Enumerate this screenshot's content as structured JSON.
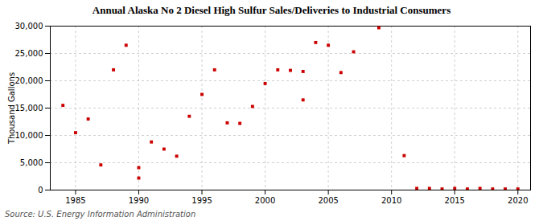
{
  "chart_data": {
    "type": "scatter",
    "title": "Annual Alaska No 2 Diesel High Sulfur Sales/Deliveries to Industrial Consumers",
    "ylabel": "Thousand Gallons",
    "source": "Source: U.S. Energy Information Administration",
    "color": "#cc0000",
    "marker": "square",
    "grid": true,
    "xlim": [
      1983,
      2021
    ],
    "ylim": [
      0,
      30000
    ],
    "xticks": [
      1985,
      1990,
      1995,
      2000,
      2005,
      2010,
      2015,
      2020
    ],
    "yticks": [
      0,
      {
        "value": 5000,
        "label": "5,000"
      },
      {
        "value": 10000,
        "label": "10,000"
      },
      {
        "value": 15000,
        "label": "15,000"
      },
      {
        "value": 20000,
        "label": "20,000"
      },
      {
        "value": 25000,
        "label": "25,000"
      },
      {
        "value": 30000,
        "label": "30,000"
      }
    ],
    "x": [
      1984,
      1985,
      1986,
      1987,
      1988,
      1989,
      1990,
      1990,
      1991,
      1992,
      1993,
      1994,
      1995,
      1996,
      1997,
      1998,
      1999,
      2000,
      2001,
      2002,
      2003,
      2003,
      2004,
      2005,
      2006,
      2007,
      2009,
      2011,
      2012,
      2013,
      2014,
      2015,
      2016,
      2017,
      2018,
      2019,
      2020
    ],
    "values": [
      15500,
      10500,
      13000,
      4600,
      22000,
      26500,
      2200,
      4100,
      8800,
      7500,
      6200,
      13500,
      17500,
      22000,
      12300,
      12200,
      15300,
      19500,
      22000,
      21900,
      16500,
      21700,
      27000,
      26500,
      21500,
      25300,
      29700,
      6300,
      300,
      300,
      200,
      300,
      200,
      300,
      200,
      200,
      200
    ]
  }
}
